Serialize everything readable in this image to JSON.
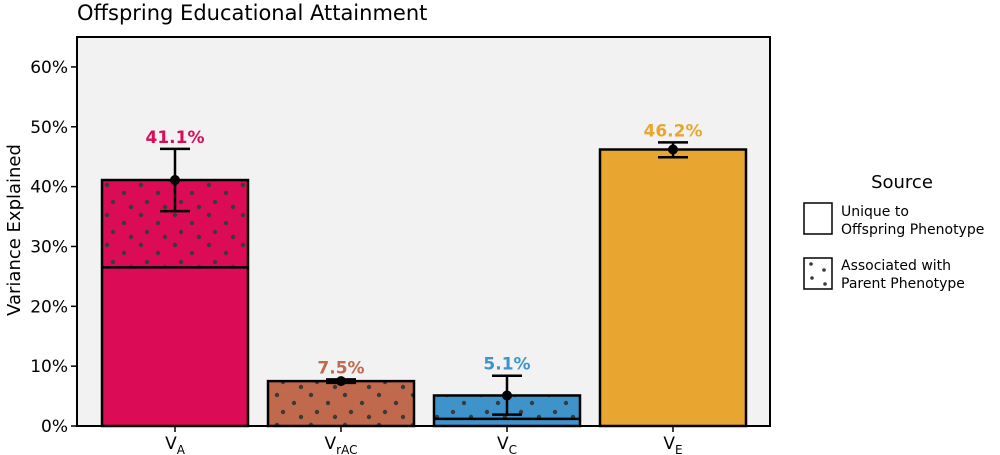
{
  "chart_data": {
    "type": "bar",
    "title": "Offspring Educational Attainment",
    "ylabel": "Variance Explained",
    "xlabel": "",
    "ylim": [
      0,
      0.65
    ],
    "yticks": [
      0,
      0.1,
      0.2,
      0.3,
      0.4,
      0.5,
      0.6
    ],
    "ytick_labels": [
      "0%",
      "10%",
      "20%",
      "30%",
      "40%",
      "50%",
      "60%"
    ],
    "grid": false,
    "categories": [
      {
        "main": "V",
        "sub": "A"
      },
      {
        "main": "V",
        "sub": "rAC"
      },
      {
        "main": "V",
        "sub": "C"
      },
      {
        "main": "V",
        "sub": "E"
      }
    ],
    "bars": [
      {
        "total": 0.411,
        "unique": 0.265,
        "associated": 0.146,
        "error_low": 0.359,
        "error_high": 0.463,
        "label": "41.1%",
        "color": "#dc0b55"
      },
      {
        "total": 0.075,
        "unique": 0.0,
        "associated": 0.075,
        "error_low": 0.072,
        "error_high": 0.078,
        "label": "7.5%",
        "color": "#c0694c"
      },
      {
        "total": 0.051,
        "unique": 0.012,
        "associated": 0.039,
        "error_low": 0.019,
        "error_high": 0.084,
        "label": "5.1%",
        "color": "#3f93cb"
      },
      {
        "total": 0.462,
        "unique": 0.462,
        "associated": 0.0,
        "error_low": 0.449,
        "error_high": 0.474,
        "label": "46.2%",
        "color": "#e8a630"
      }
    ],
    "legend": {
      "title": "Source",
      "placement": "right",
      "items": [
        {
          "line1": "Unique to",
          "line2": "Offspring Phenotype",
          "pattern": "none"
        },
        {
          "line1": "Associated with",
          "line2": "Parent Phenotype",
          "pattern": "dots"
        }
      ]
    },
    "colors": {
      "panel_bg": "#f2f2f2",
      "dot": "#3a3a3a"
    }
  }
}
